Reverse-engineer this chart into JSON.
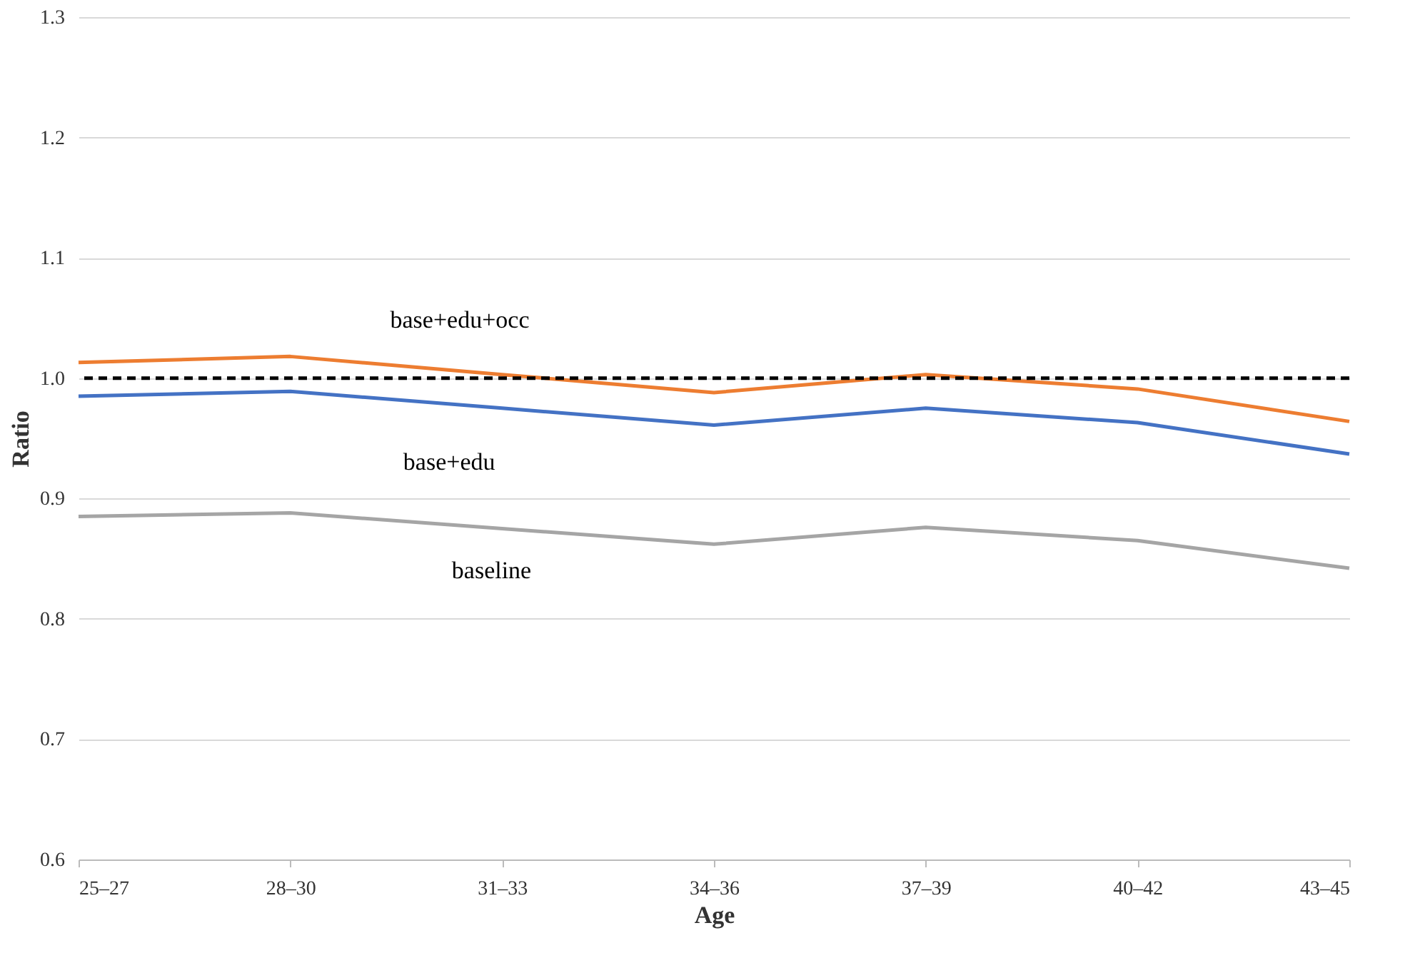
{
  "chart_data": {
    "type": "line",
    "xlabel": "Age",
    "ylabel": "Ratio",
    "categories": [
      "25–27",
      "28–30",
      "31–33",
      "34–36",
      "37–39",
      "40–42",
      "43–45"
    ],
    "series": [
      {
        "name": "base+edu+occ",
        "color": "#ed7d31",
        "values": [
          1.013,
          1.018,
          1.003,
          0.988,
          1.003,
          0.991,
          0.964
        ]
      },
      {
        "name": "base+edu",
        "color": "#4472c4",
        "values": [
          0.985,
          0.989,
          0.975,
          0.961,
          0.975,
          0.963,
          0.937
        ]
      },
      {
        "name": "baseline",
        "color": "#a5a5a5",
        "values": [
          0.885,
          0.888,
          0.875,
          0.862,
          0.876,
          0.865,
          0.842
        ]
      }
    ],
    "ylim": [
      0.6,
      1.3
    ],
    "yticks": [
      0.6,
      0.7,
      0.8,
      0.9,
      {
        "value": 1.0,
        "label": "1.0"
      },
      1.1,
      1.2,
      1.3
    ],
    "ref_lines": [
      {
        "axis": "y",
        "value": 1.0,
        "color": "#000000",
        "line_style": "dashed"
      }
    ],
    "grid": "y",
    "legend": false,
    "marker": "none",
    "line_style": "solid"
  }
}
